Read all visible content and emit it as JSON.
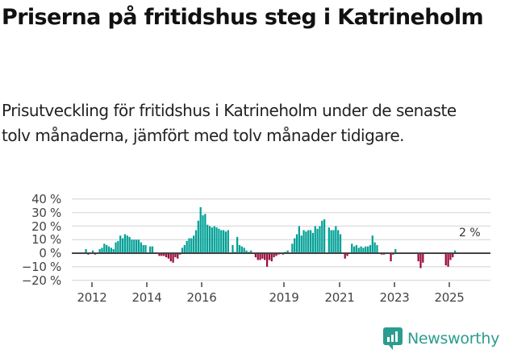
{
  "header": {
    "title": "Priserna på fritidshus steg i Katrineholm",
    "subtitle": "Prisutveckling för fritidshus i Katrineholm under de senaste tolv månaderna, jämfört med tolv månader tidigare."
  },
  "colors": {
    "positive": "#00a096",
    "negative": "#9b0a3e",
    "grid": "#e0e0e0",
    "zero_line": "#444444",
    "brand": "#2a9d8f"
  },
  "annotation": {
    "label": "2 %"
  },
  "logo": {
    "text": "Newsworthy",
    "icon": "bar-chart-bubble-icon"
  },
  "chart_data": {
    "type": "bar",
    "title": "Priserna på fritidshus steg i Katrineholm",
    "subtitle": "Prisutveckling för fritidshus i Katrineholm under de senaste tolv månaderna, jämfört med tolv månader tidigare.",
    "xlabel": "",
    "ylabel": "",
    "ylim": [
      -20,
      40
    ],
    "yticks": [
      40,
      30,
      20,
      10,
      0,
      -10,
      -20
    ],
    "ytick_labels": [
      "40 %",
      "30 %",
      "20 %",
      "10 %",
      "0 %",
      "−10 %",
      "−20 %"
    ],
    "xticks": [
      "2012",
      "2014",
      "2016",
      "2019",
      "2021",
      "2023",
      "2025"
    ],
    "grid": true,
    "legend": null,
    "annotations": [
      {
        "x": "2025-09",
        "text": "2 %"
      }
    ],
    "start": "2011-10",
    "frequency": "monthly",
    "values": [
      3,
      -1,
      0,
      2,
      -1,
      0,
      3,
      4,
      7,
      6,
      5,
      4,
      3,
      8,
      9,
      13,
      11,
      14,
      13,
      12,
      10,
      10,
      10,
      10,
      8,
      6,
      6,
      0,
      5,
      5,
      0,
      0,
      -2,
      -2,
      -2,
      -3,
      -4,
      -6,
      -7,
      -3,
      -4,
      -1,
      4,
      6,
      9,
      11,
      11,
      13,
      17,
      24,
      34,
      28,
      29,
      21,
      20,
      19,
      20,
      19,
      18,
      17,
      17,
      16,
      17,
      0,
      6,
      1,
      12,
      6,
      5,
      4,
      2,
      1,
      2,
      0,
      -3,
      -5,
      -5,
      -4,
      -5,
      -10,
      -5,
      -6,
      -3,
      -2,
      -1,
      0,
      -1,
      1,
      2,
      0,
      7,
      11,
      14,
      20,
      13,
      17,
      16,
      17,
      17,
      15,
      20,
      18,
      20,
      24,
      25,
      0,
      19,
      17,
      17,
      20,
      17,
      14,
      0,
      -4,
      -2,
      0,
      7,
      5,
      6,
      4,
      5,
      4,
      5,
      5,
      6,
      13,
      8,
      6,
      0,
      -1,
      -1,
      0,
      0,
      -6,
      -1,
      3,
      0,
      0,
      0,
      0,
      0,
      0,
      0,
      0,
      0,
      -6,
      -11,
      -7,
      0,
      0,
      0,
      0,
      0,
      0,
      0,
      0,
      0,
      -9,
      -10,
      -5,
      -3,
      2
    ]
  }
}
